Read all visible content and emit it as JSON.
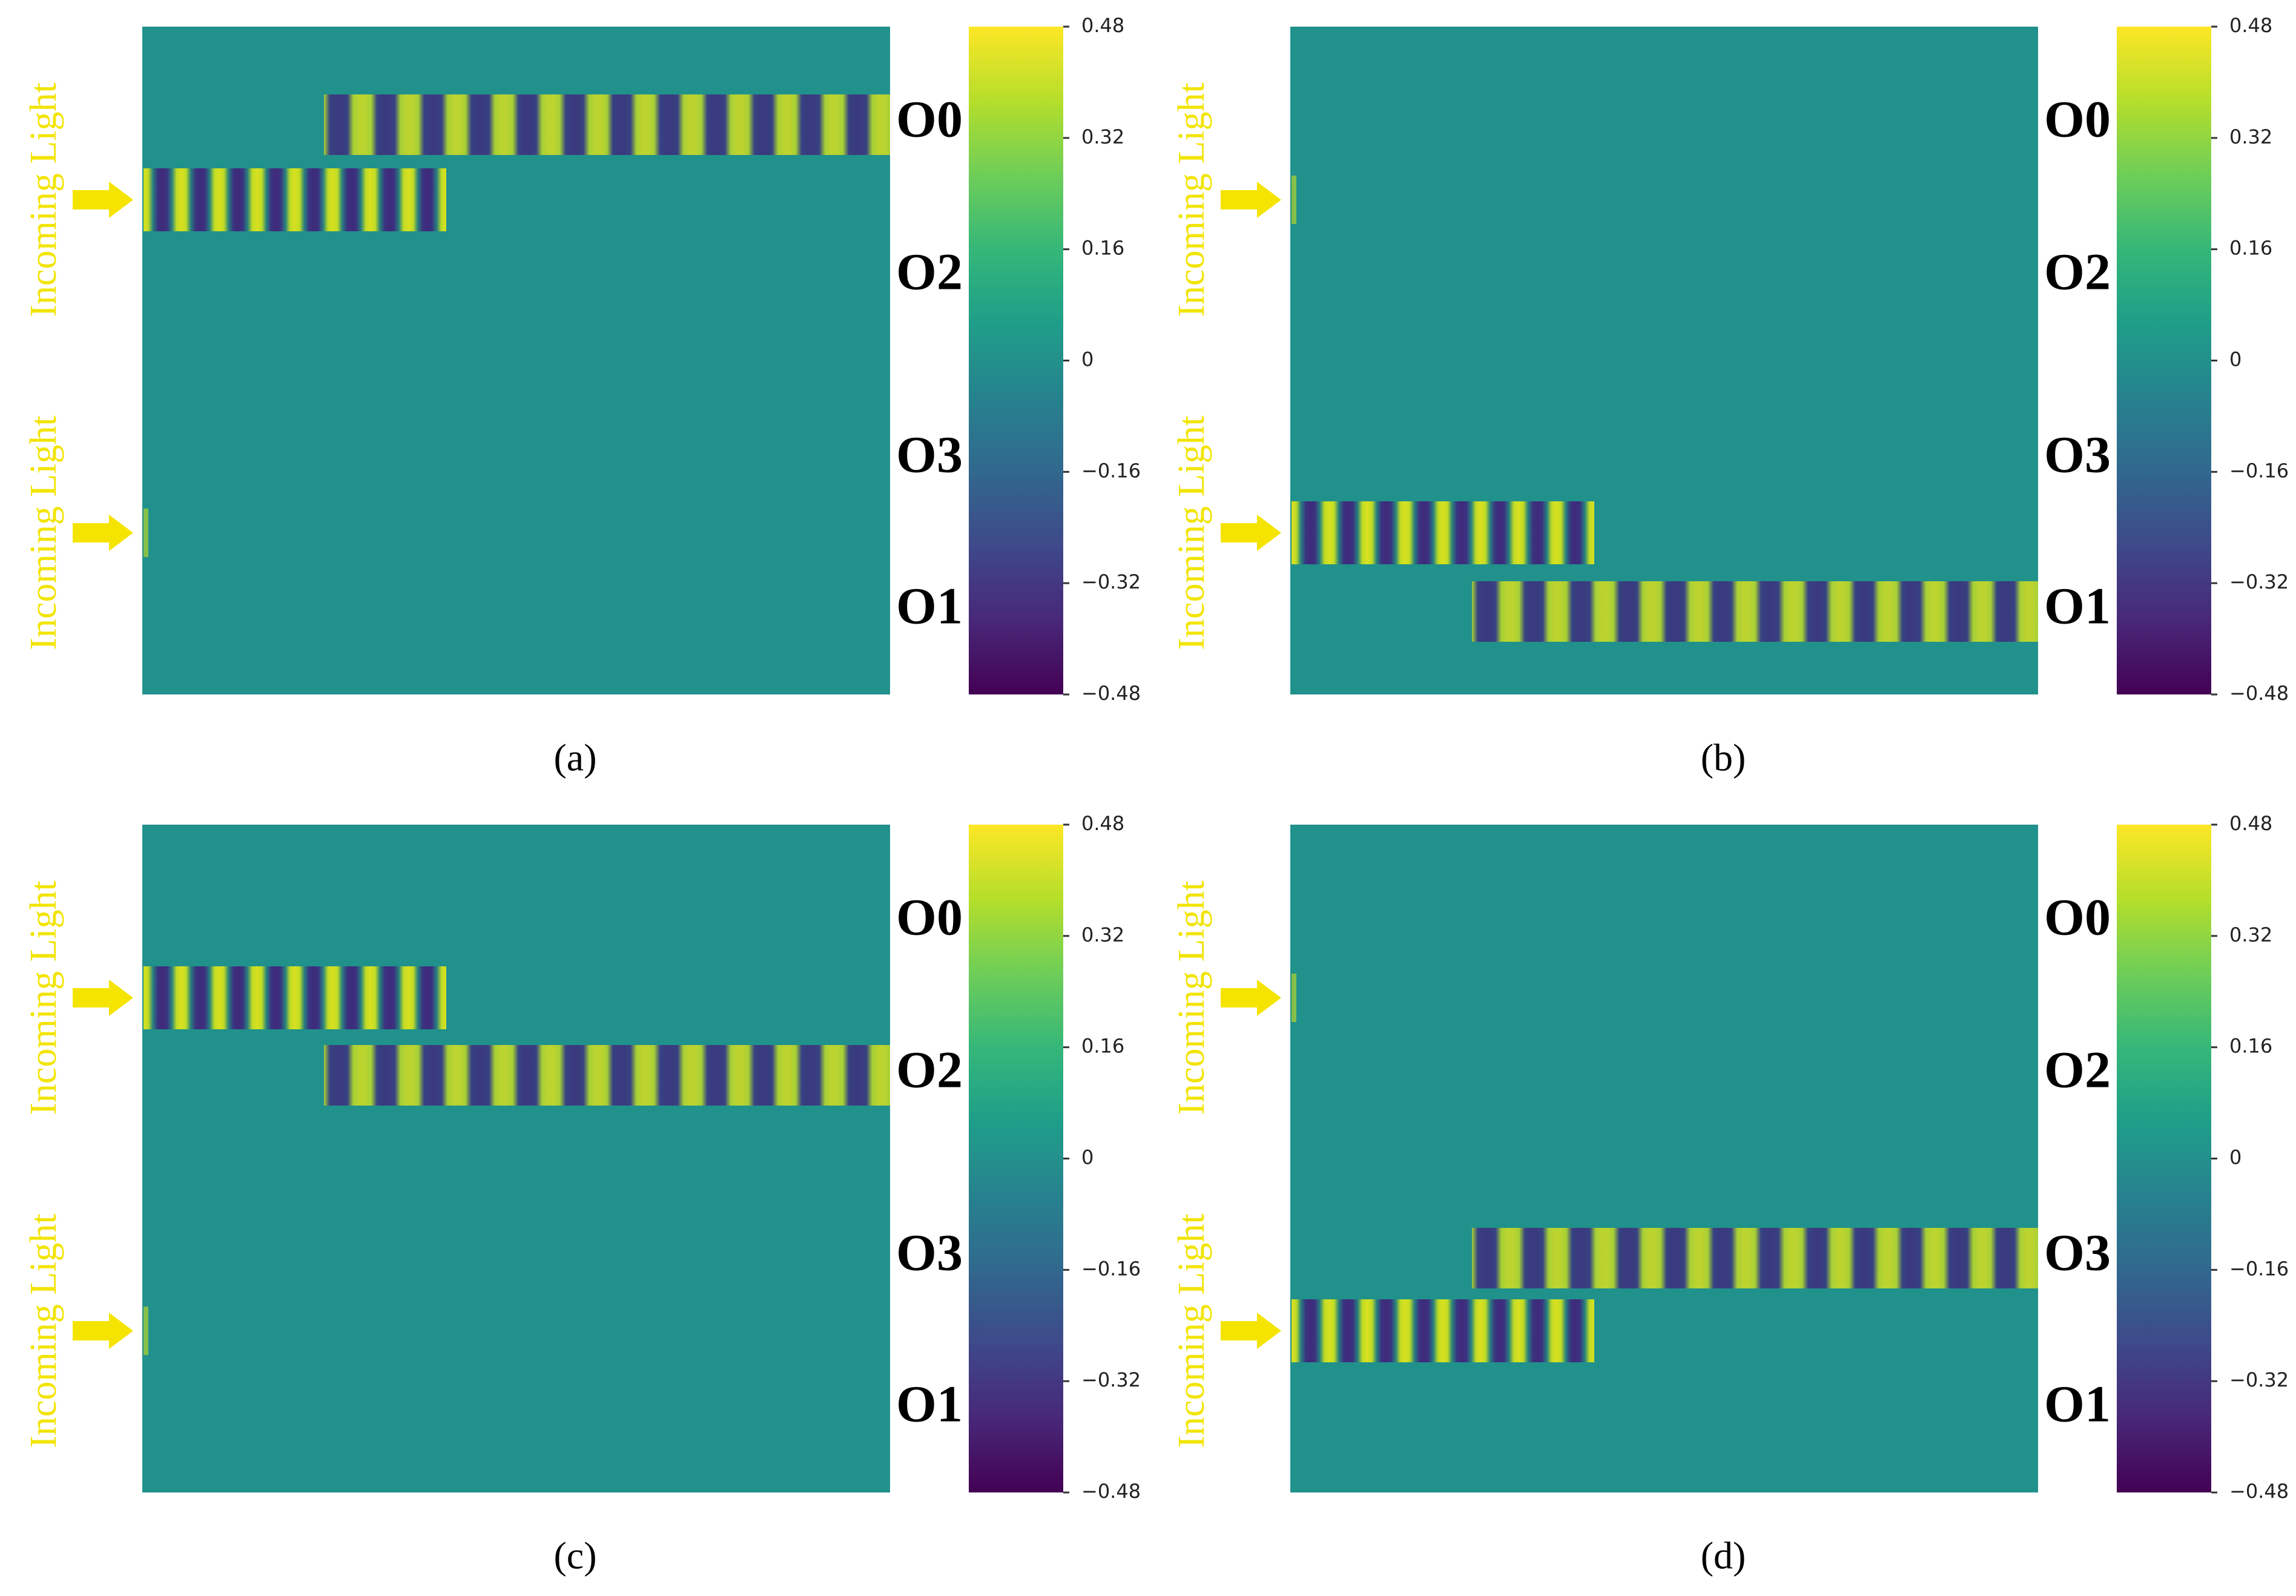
{
  "figure": {
    "input_label": "Incoming Light",
    "output_ports": [
      "O0",
      "O2",
      "O3",
      "O1"
    ],
    "colormap": "viridis",
    "colorbar": {
      "ticks": [
        "0.48",
        "0.32",
        "0.16",
        "0",
        "−0.16",
        "−0.32",
        "−0.48"
      ],
      "range": [
        -0.48,
        0.48
      ]
    },
    "colors": {
      "arrow": "#f5e400",
      "label": "#f2e400",
      "background_field": "#21918c"
    }
  },
  "panels": [
    {
      "id": "a",
      "caption": "(a)",
      "input_port_active": "top",
      "output_port_active": "O0",
      "input_beam_row": "top-input",
      "output_beam_row": "O0"
    },
    {
      "id": "b",
      "caption": "(b)",
      "input_port_active": "bottom",
      "output_port_active": "O1",
      "input_beam_row": "bottom-input",
      "output_beam_row": "O1"
    },
    {
      "id": "c",
      "caption": "(c)",
      "input_port_active": "top",
      "output_port_active": "O2",
      "input_beam_row": "top-input",
      "output_beam_row": "O2"
    },
    {
      "id": "d",
      "caption": "(d)",
      "input_port_active": "bottom",
      "output_port_active": "O3",
      "input_beam_row": "bottom-input",
      "output_beam_row": "O3"
    }
  ]
}
